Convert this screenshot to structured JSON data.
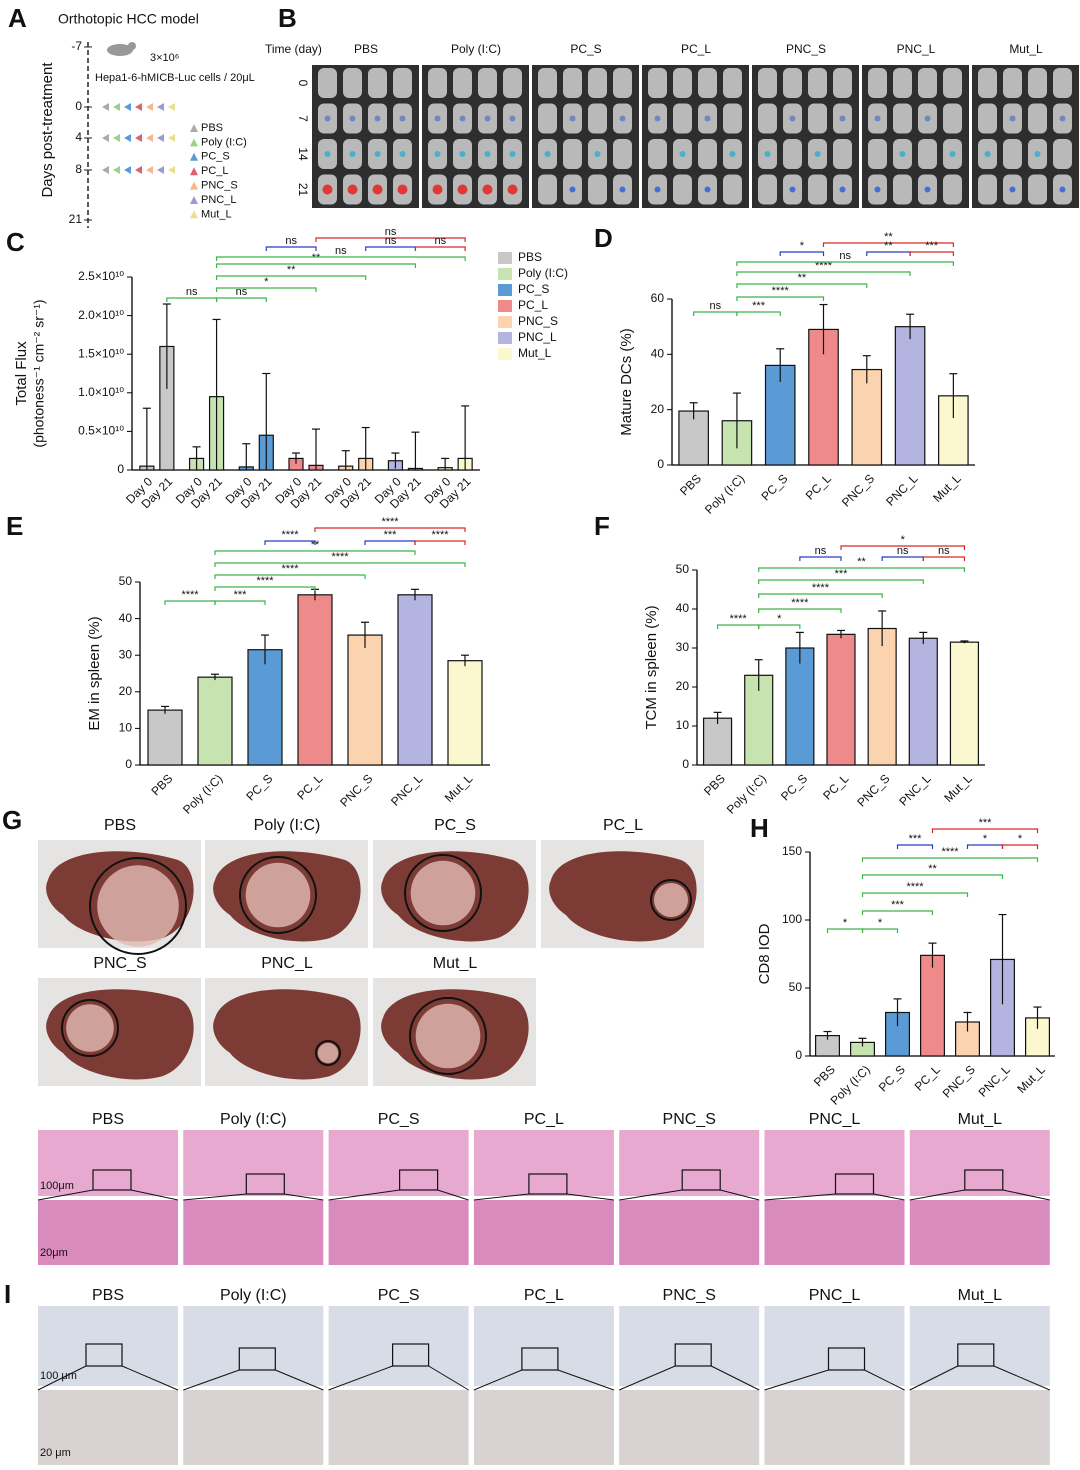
{
  "panel_labels": [
    "A",
    "B",
    "C",
    "D",
    "E",
    "F",
    "G",
    "H",
    "I"
  ],
  "groups": [
    "PBS",
    "Poly (I:C)",
    "PC_S",
    "PC_L",
    "PNC_S",
    "PNC_L",
    "Mut_L"
  ],
  "panel_a": {
    "title": "Orthotopic HCC model",
    "axis_label": "Days post-treatment",
    "days": [
      "-7",
      "0",
      "4",
      "8",
      "21"
    ],
    "dose": "3×10⁶",
    "cells": "Hepa1-6-hMICB-Luc cells / 20μL",
    "marker_colors": [
      "#aaaaaa",
      "#9fd08a",
      "#5b9bd5",
      "#e06070",
      "#f6b88a",
      "#9a9ad8",
      "#e8e090"
    ]
  },
  "panel_b": {
    "time_label": "Time (day)",
    "days": [
      "0",
      "7",
      "14",
      "21"
    ]
  },
  "panel_g": {
    "scale_top": "100μm",
    "scale_bottom": "20μm"
  },
  "panel_i": {
    "scale_top": "100 μm",
    "scale_bottom": "20 μm"
  },
  "chart_data": [
    {
      "type": "bar",
      "ylabel": "Total Flux",
      "ylabel_unit": "(photoness⁻¹ cm⁻² sr⁻¹)",
      "categories": [
        "Day 0",
        "Day 21"
      ],
      "series": [
        {
          "name": "PBS",
          "color": "#c8c8c8",
          "values": [
            500000000,
            16000000000
          ],
          "errors": [
            7500000000,
            5500000000
          ]
        },
        {
          "name": "Poly (I:C)",
          "color": "#c7e3b0",
          "values": [
            1500000000,
            9500000000
          ],
          "errors": [
            1500000000,
            10000000000
          ]
        },
        {
          "name": "PC_S",
          "color": "#5b9bd5",
          "values": [
            400000000,
            4500000000
          ],
          "errors": [
            3000000000,
            8000000000
          ]
        },
        {
          "name": "PC_L",
          "color": "#ef8a8a",
          "values": [
            1500000000,
            600000000
          ],
          "errors": [
            700000000,
            4700000000
          ]
        },
        {
          "name": "PNC_S",
          "color": "#fbd3ae",
          "values": [
            500000000,
            1500000000
          ],
          "errors": [
            2000000000,
            4000000000
          ]
        },
        {
          "name": "PNC_L",
          "color": "#b4b4e0",
          "values": [
            1200000000,
            200000000
          ],
          "errors": [
            1000000000,
            4700000000
          ]
        },
        {
          "name": "Mut_L",
          "color": "#fbf7cf",
          "values": [
            300000000,
            1500000000
          ],
          "errors": [
            1200000000,
            6800000000
          ]
        }
      ],
      "ylim": [
        0,
        25000000000
      ],
      "yticks": [
        0,
        {
          "value": 5000000000,
          "label": "0.5×10¹⁰"
        },
        {
          "value": 10000000000,
          "label": "1.0×10¹⁰"
        },
        {
          "value": 15000000000,
          "label": "1.5×10¹⁰"
        },
        {
          "value": 20000000000,
          "label": "2.0×10¹⁰"
        },
        {
          "value": 25000000000,
          "label": "2.5×10¹⁰"
        }
      ],
      "significance": [
        "ns",
        "ns",
        "*",
        "**",
        "**",
        "ns",
        "ns",
        "ns",
        "ns",
        "ns"
      ]
    },
    {
      "type": "bar",
      "ylabel": "Mature DCs (%)",
      "categories": [
        "PBS",
        "Poly (I:C)",
        "PC_S",
        "PC_L",
        "PNC_S",
        "PNC_L",
        "Mut_L"
      ],
      "values": [
        19.5,
        16,
        36,
        49,
        34.5,
        50,
        25
      ],
      "errors": [
        3,
        10,
        6,
        9,
        5,
        4.5,
        8
      ],
      "colors": [
        "#c8c8c8",
        "#c7e3b0",
        "#5b9bd5",
        "#ef8a8a",
        "#fbd3ae",
        "#b4b4e0",
        "#fbf7cf"
      ],
      "ylim": [
        0,
        60
      ],
      "yticks": [
        0,
        20,
        40,
        60
      ],
      "significance": [
        "ns",
        "***",
        "****",
        "**",
        "****",
        "ns",
        "*",
        "**",
        "**",
        "***"
      ]
    },
    {
      "type": "bar",
      "ylabel": "EM in spleen (%)",
      "categories": [
        "PBS",
        "Poly (I:C)",
        "PC_S",
        "PC_L",
        "PNC_S",
        "PNC_L",
        "Mut_L"
      ],
      "values": [
        15,
        24,
        31.5,
        46.5,
        35.5,
        46.5,
        28.5
      ],
      "errors": [
        1,
        0.8,
        4,
        1.5,
        3.5,
        1.5,
        1.5
      ],
      "colors": [
        "#c8c8c8",
        "#c7e3b0",
        "#5b9bd5",
        "#ef8a8a",
        "#fbd3ae",
        "#b4b4e0",
        "#fbf7cf"
      ],
      "ylim": [
        0,
        50
      ],
      "yticks": [
        0,
        10,
        20,
        30,
        40,
        50
      ],
      "significance": [
        "****",
        "***",
        "****",
        "****",
        "****",
        "**",
        "****",
        "****",
        "***",
        "****"
      ]
    },
    {
      "type": "bar",
      "ylabel": "TCM in spleen (%)",
      "categories": [
        "PBS",
        "Poly (I:C)",
        "PC_S",
        "PC_L",
        "PNC_S",
        "PNC_L",
        "Mut_L"
      ],
      "values": [
        12,
        23,
        30,
        33.5,
        35,
        32.5,
        31.5
      ],
      "errors": [
        1.5,
        4,
        4,
        1,
        4.5,
        1.5,
        0.3
      ],
      "colors": [
        "#c8c8c8",
        "#c7e3b0",
        "#5b9bd5",
        "#ef8a8a",
        "#fbd3ae",
        "#b4b4e0",
        "#fbf7cf"
      ],
      "ylim": [
        0,
        50
      ],
      "yticks": [
        0,
        10,
        20,
        30,
        40,
        50
      ],
      "significance": [
        "****",
        "*",
        "****",
        "****",
        "***",
        "**",
        "ns",
        "*",
        "ns",
        "ns"
      ]
    },
    {
      "type": "bar",
      "ylabel": "CD8 IOD",
      "categories": [
        "PBS",
        "Poly (I:C)",
        "PC_S",
        "PC_L",
        "PNC_S",
        "PNC_L",
        "Mut_L"
      ],
      "values": [
        15,
        10,
        32,
        74,
        25,
        71,
        28
      ],
      "errors": [
        3,
        3,
        10,
        9,
        7,
        33,
        8
      ],
      "colors": [
        "#c8c8c8",
        "#c7e3b0",
        "#5b9bd5",
        "#ef8a8a",
        "#fbd3ae",
        "#b4b4e0",
        "#fbf7cf"
      ],
      "ylim": [
        0,
        150
      ],
      "yticks": [
        0,
        50,
        100,
        150
      ],
      "significance": [
        "*",
        "*",
        "***",
        "****",
        "**",
        "****",
        "***",
        "***",
        "*",
        "*"
      ]
    }
  ]
}
